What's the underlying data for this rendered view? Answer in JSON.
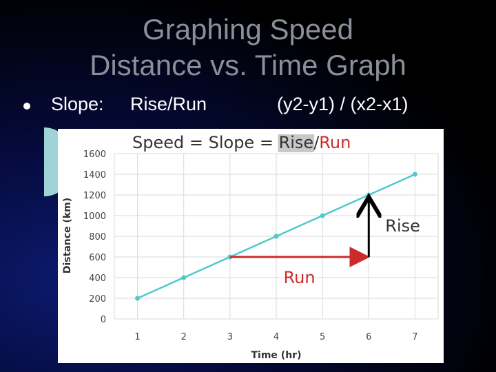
{
  "slide": {
    "title_line_1": "Graphing Speed",
    "title_line_2": "Distance vs. Time Graph",
    "bullet_label": "Slope:",
    "bullet_rule": "Rise/Run",
    "bullet_formula": "(y2-y1) / (x2-x1)"
  },
  "chart_data": {
    "type": "line",
    "title_prefix": "Speed = Slope = ",
    "title_rise": "Rise",
    "title_sep": "/",
    "title_run": "Run",
    "xlabel": "Time (hr)",
    "ylabel": "Distance (km)",
    "x": [
      1,
      2,
      3,
      4,
      5,
      6,
      7
    ],
    "series": [
      {
        "values": [
          200,
          400,
          600,
          800,
          1000,
          1200,
          1400
        ]
      }
    ],
    "xlim": [
      0.5,
      7.5
    ],
    "ylim": [
      0,
      1600
    ],
    "x_ticks": [
      "1",
      "2",
      "3",
      "4",
      "5",
      "6",
      "7"
    ],
    "y_ticks": [
      "0",
      "200",
      "400",
      "600",
      "800",
      "1000",
      "1200",
      "1400",
      "1600"
    ],
    "grid": true,
    "annotations": {
      "run_label": "Run",
      "rise_label": "Rise",
      "run_from": [
        3,
        600
      ],
      "run_to": [
        6,
        600
      ],
      "rise_from": [
        6,
        600
      ],
      "rise_to": [
        6,
        1200
      ]
    },
    "colors": {
      "line": "#4fc9cc",
      "run_arrow": "#cc2b2b",
      "rise_arrow": "#000000",
      "run_label": "#cc2b2b",
      "title_rise_highlight": "#c8c8c8",
      "title_run": "#cc2b2b",
      "grid": "#d9d9d9"
    }
  }
}
